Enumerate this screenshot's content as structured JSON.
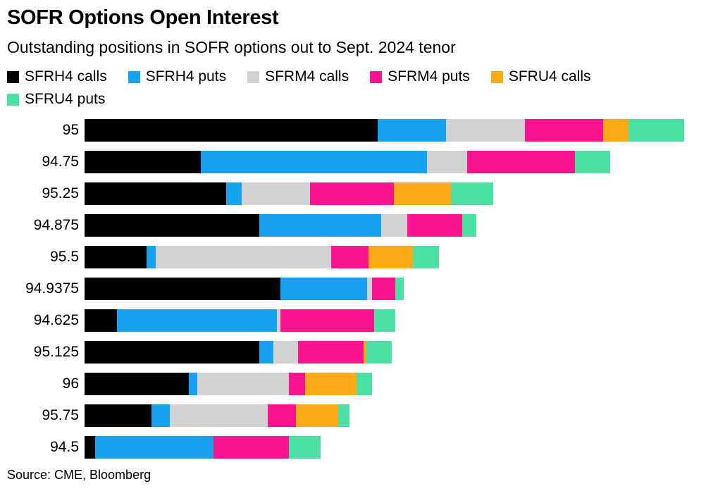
{
  "header": {
    "title": "SOFR Options Open Interest",
    "subtitle": "Outstanding positions in SOFR options out to Sept. 2024 tenor"
  },
  "source": "Source: CME, Bloomberg",
  "chart_data": {
    "type": "bar",
    "orientation": "horizontal",
    "stacked": true,
    "grid": false,
    "legend_position": "top",
    "legend_wrap_after": 5,
    "value_axis_shown": false,
    "value_units": "relative width (no x-axis labels shown)",
    "categories": [
      "95",
      "94.75",
      "95.25",
      "94.875",
      "95.5",
      "94.9375",
      "94.625",
      "95.125",
      "96",
      "95.75",
      "94.5"
    ],
    "series": [
      {
        "name": "SFRH4 calls",
        "color": "#000000",
        "values": [
          416,
          165,
          201,
          248,
          88,
          278,
          46,
          248,
          148,
          95,
          15
        ]
      },
      {
        "name": "SFRH4 puts",
        "color": "#16a2f0",
        "values": [
          97,
          321,
          22,
          173,
          13,
          123,
          227,
          20,
          12,
          26,
          168
        ]
      },
      {
        "name": "SFRM4 calls",
        "color": "#d2d2d2",
        "values": [
          112,
          57,
          97,
          37,
          249,
          7,
          5,
          35,
          130,
          139,
          0
        ]
      },
      {
        "name": "SFRM4 puts",
        "color": "#fb1390",
        "values": [
          111,
          153,
          119,
          78,
          53,
          33,
          133,
          93,
          23,
          40,
          107
        ]
      },
      {
        "name": "SFRU4 calls",
        "color": "#fbab17",
        "values": [
          36,
          0,
          81,
          0,
          63,
          0,
          0,
          4,
          73,
          60,
          0
        ]
      },
      {
        "name": "SFRU4 puts",
        "color": "#4ce0a3",
        "values": [
          79,
          50,
          60,
          20,
          37,
          12,
          30,
          36,
          22,
          16,
          45
        ]
      }
    ]
  }
}
